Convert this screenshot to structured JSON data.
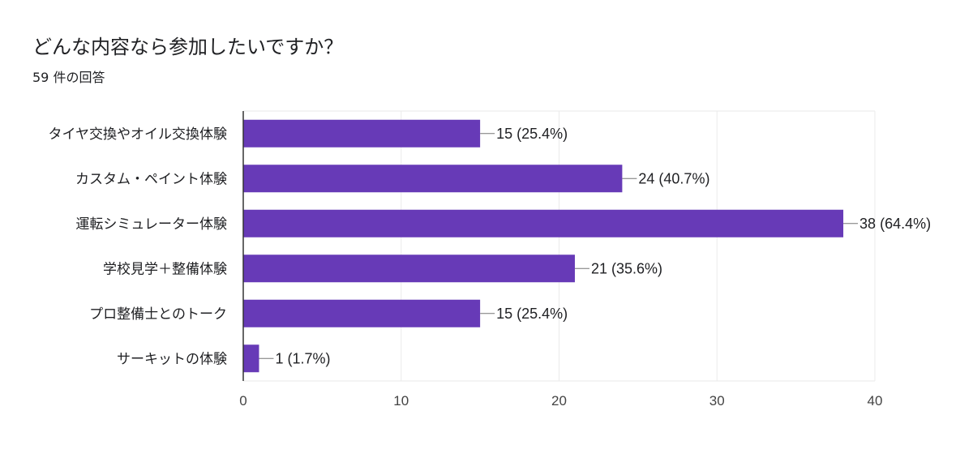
{
  "header": {
    "title": "どんな内容なら参加したいですか？",
    "subtitle": "59 件の回答"
  },
  "chart_data": {
    "type": "bar",
    "orientation": "horizontal",
    "categories": [
      "タイヤ交換やオイル交換体験",
      "カスタム・ペイント体験",
      "運転シミュレーター体験",
      "学校見学＋整備体験",
      "プロ整備士とのトーク",
      "サーキットの体験"
    ],
    "values": [
      15,
      24,
      38,
      21,
      15,
      1
    ],
    "data_labels": [
      "15 (25.4%)",
      "24 (40.7%)",
      "38 (64.4%)",
      "21 (35.6%)",
      "15 (25.4%)",
      "1 (1.7%)"
    ],
    "xlim": [
      0,
      40
    ],
    "xticks": [
      0,
      10,
      20,
      30,
      40
    ],
    "grid": true,
    "bar_color": "#673ab7"
  }
}
